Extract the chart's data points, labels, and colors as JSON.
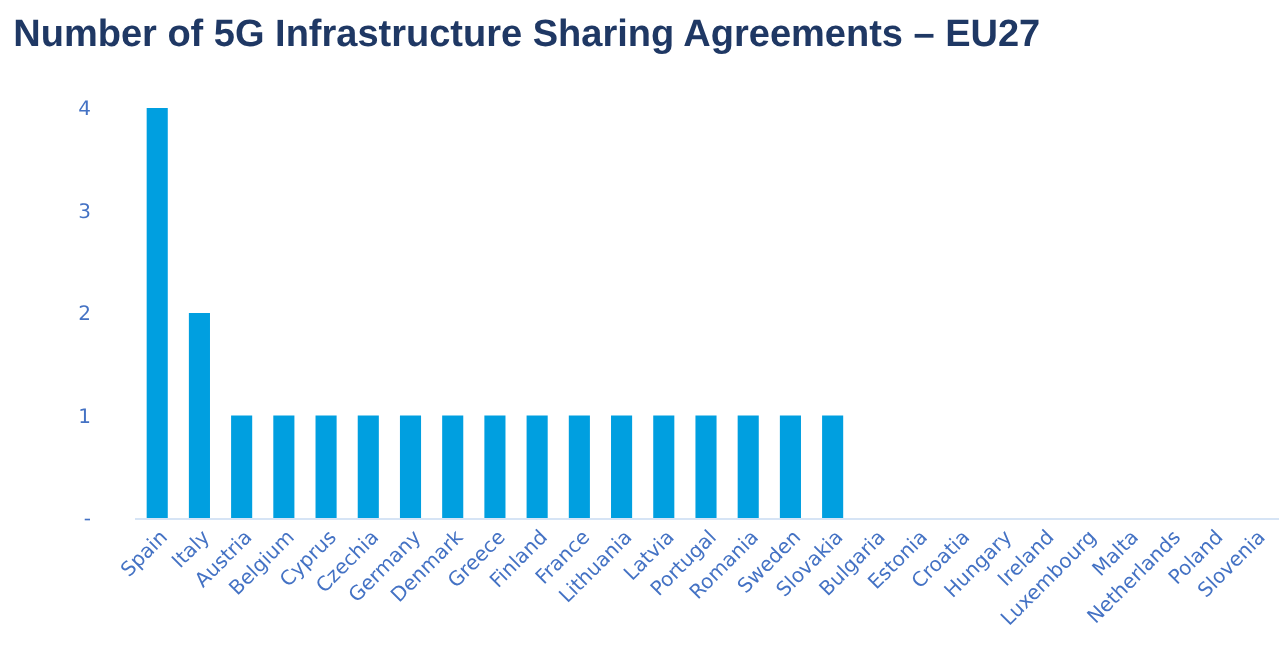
{
  "chart_data": {
    "type": "bar",
    "title": "Number of 5G Infrastructure Sharing Agreements – EU27",
    "categories": [
      "Spain",
      "Italy",
      "Austria",
      "Belgium",
      "Cyprus",
      "Czechia",
      "Germany",
      "Denmark",
      "Greece",
      "Finland",
      "France",
      "Lithuania",
      "Latvia",
      "Portugal",
      "Romania",
      "Sweden",
      "Slovakia",
      "Bulgaria",
      "Estonia",
      "Croatia",
      "Hungary",
      "Ireland",
      "Luxembourg",
      "Malta",
      "Netherlands",
      "Poland",
      "Slovenia"
    ],
    "values": [
      4,
      2,
      1,
      1,
      1,
      1,
      1,
      1,
      1,
      1,
      1,
      1,
      1,
      1,
      1,
      1,
      1,
      0,
      0,
      0,
      0,
      0,
      0,
      0,
      0,
      0,
      0
    ],
    "color": "#009fe0",
    "ylim": [
      0,
      4
    ],
    "yticks": [
      {
        "value": 0,
        "label": "-"
      },
      1,
      2,
      3,
      4
    ],
    "grid": false
  }
}
